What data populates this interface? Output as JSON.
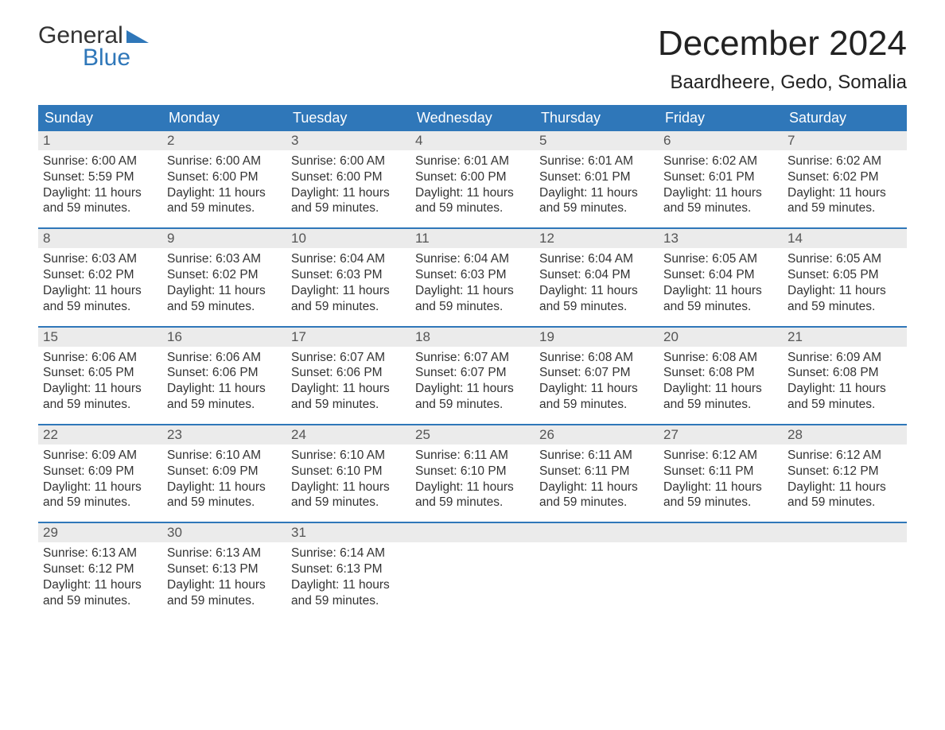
{
  "brand": {
    "line1": "General",
    "line2": "Blue",
    "accent_color": "#2f77b9"
  },
  "title": "December 2024",
  "location": "Baardheere, Gedo, Somalia",
  "colors": {
    "header_bg": "#2f77b9",
    "header_text": "#ffffff",
    "daynum_bg": "#ebebeb",
    "daynum_text": "#555555",
    "body_text": "#333333",
    "page_bg": "#ffffff",
    "week_divider": "#2f77b9"
  },
  "layout": {
    "columns": 7,
    "type": "calendar"
  },
  "weekdays": [
    "Sunday",
    "Monday",
    "Tuesday",
    "Wednesday",
    "Thursday",
    "Friday",
    "Saturday"
  ],
  "weeks": [
    [
      {
        "day": "1",
        "sunrise": "Sunrise: 6:00 AM",
        "sunset": "Sunset: 5:59 PM",
        "daylight1": "Daylight: 11 hours",
        "daylight2": "and 59 minutes."
      },
      {
        "day": "2",
        "sunrise": "Sunrise: 6:00 AM",
        "sunset": "Sunset: 6:00 PM",
        "daylight1": "Daylight: 11 hours",
        "daylight2": "and 59 minutes."
      },
      {
        "day": "3",
        "sunrise": "Sunrise: 6:00 AM",
        "sunset": "Sunset: 6:00 PM",
        "daylight1": "Daylight: 11 hours",
        "daylight2": "and 59 minutes."
      },
      {
        "day": "4",
        "sunrise": "Sunrise: 6:01 AM",
        "sunset": "Sunset: 6:00 PM",
        "daylight1": "Daylight: 11 hours",
        "daylight2": "and 59 minutes."
      },
      {
        "day": "5",
        "sunrise": "Sunrise: 6:01 AM",
        "sunset": "Sunset: 6:01 PM",
        "daylight1": "Daylight: 11 hours",
        "daylight2": "and 59 minutes."
      },
      {
        "day": "6",
        "sunrise": "Sunrise: 6:02 AM",
        "sunset": "Sunset: 6:01 PM",
        "daylight1": "Daylight: 11 hours",
        "daylight2": "and 59 minutes."
      },
      {
        "day": "7",
        "sunrise": "Sunrise: 6:02 AM",
        "sunset": "Sunset: 6:02 PM",
        "daylight1": "Daylight: 11 hours",
        "daylight2": "and 59 minutes."
      }
    ],
    [
      {
        "day": "8",
        "sunrise": "Sunrise: 6:03 AM",
        "sunset": "Sunset: 6:02 PM",
        "daylight1": "Daylight: 11 hours",
        "daylight2": "and 59 minutes."
      },
      {
        "day": "9",
        "sunrise": "Sunrise: 6:03 AM",
        "sunset": "Sunset: 6:02 PM",
        "daylight1": "Daylight: 11 hours",
        "daylight2": "and 59 minutes."
      },
      {
        "day": "10",
        "sunrise": "Sunrise: 6:04 AM",
        "sunset": "Sunset: 6:03 PM",
        "daylight1": "Daylight: 11 hours",
        "daylight2": "and 59 minutes."
      },
      {
        "day": "11",
        "sunrise": "Sunrise: 6:04 AM",
        "sunset": "Sunset: 6:03 PM",
        "daylight1": "Daylight: 11 hours",
        "daylight2": "and 59 minutes."
      },
      {
        "day": "12",
        "sunrise": "Sunrise: 6:04 AM",
        "sunset": "Sunset: 6:04 PM",
        "daylight1": "Daylight: 11 hours",
        "daylight2": "and 59 minutes."
      },
      {
        "day": "13",
        "sunrise": "Sunrise: 6:05 AM",
        "sunset": "Sunset: 6:04 PM",
        "daylight1": "Daylight: 11 hours",
        "daylight2": "and 59 minutes."
      },
      {
        "day": "14",
        "sunrise": "Sunrise: 6:05 AM",
        "sunset": "Sunset: 6:05 PM",
        "daylight1": "Daylight: 11 hours",
        "daylight2": "and 59 minutes."
      }
    ],
    [
      {
        "day": "15",
        "sunrise": "Sunrise: 6:06 AM",
        "sunset": "Sunset: 6:05 PM",
        "daylight1": "Daylight: 11 hours",
        "daylight2": "and 59 minutes."
      },
      {
        "day": "16",
        "sunrise": "Sunrise: 6:06 AM",
        "sunset": "Sunset: 6:06 PM",
        "daylight1": "Daylight: 11 hours",
        "daylight2": "and 59 minutes."
      },
      {
        "day": "17",
        "sunrise": "Sunrise: 6:07 AM",
        "sunset": "Sunset: 6:06 PM",
        "daylight1": "Daylight: 11 hours",
        "daylight2": "and 59 minutes."
      },
      {
        "day": "18",
        "sunrise": "Sunrise: 6:07 AM",
        "sunset": "Sunset: 6:07 PM",
        "daylight1": "Daylight: 11 hours",
        "daylight2": "and 59 minutes."
      },
      {
        "day": "19",
        "sunrise": "Sunrise: 6:08 AM",
        "sunset": "Sunset: 6:07 PM",
        "daylight1": "Daylight: 11 hours",
        "daylight2": "and 59 minutes."
      },
      {
        "day": "20",
        "sunrise": "Sunrise: 6:08 AM",
        "sunset": "Sunset: 6:08 PM",
        "daylight1": "Daylight: 11 hours",
        "daylight2": "and 59 minutes."
      },
      {
        "day": "21",
        "sunrise": "Sunrise: 6:09 AM",
        "sunset": "Sunset: 6:08 PM",
        "daylight1": "Daylight: 11 hours",
        "daylight2": "and 59 minutes."
      }
    ],
    [
      {
        "day": "22",
        "sunrise": "Sunrise: 6:09 AM",
        "sunset": "Sunset: 6:09 PM",
        "daylight1": "Daylight: 11 hours",
        "daylight2": "and 59 minutes."
      },
      {
        "day": "23",
        "sunrise": "Sunrise: 6:10 AM",
        "sunset": "Sunset: 6:09 PM",
        "daylight1": "Daylight: 11 hours",
        "daylight2": "and 59 minutes."
      },
      {
        "day": "24",
        "sunrise": "Sunrise: 6:10 AM",
        "sunset": "Sunset: 6:10 PM",
        "daylight1": "Daylight: 11 hours",
        "daylight2": "and 59 minutes."
      },
      {
        "day": "25",
        "sunrise": "Sunrise: 6:11 AM",
        "sunset": "Sunset: 6:10 PM",
        "daylight1": "Daylight: 11 hours",
        "daylight2": "and 59 minutes."
      },
      {
        "day": "26",
        "sunrise": "Sunrise: 6:11 AM",
        "sunset": "Sunset: 6:11 PM",
        "daylight1": "Daylight: 11 hours",
        "daylight2": "and 59 minutes."
      },
      {
        "day": "27",
        "sunrise": "Sunrise: 6:12 AM",
        "sunset": "Sunset: 6:11 PM",
        "daylight1": "Daylight: 11 hours",
        "daylight2": "and 59 minutes."
      },
      {
        "day": "28",
        "sunrise": "Sunrise: 6:12 AM",
        "sunset": "Sunset: 6:12 PM",
        "daylight1": "Daylight: 11 hours",
        "daylight2": "and 59 minutes."
      }
    ],
    [
      {
        "day": "29",
        "sunrise": "Sunrise: 6:13 AM",
        "sunset": "Sunset: 6:12 PM",
        "daylight1": "Daylight: 11 hours",
        "daylight2": "and 59 minutes."
      },
      {
        "day": "30",
        "sunrise": "Sunrise: 6:13 AM",
        "sunset": "Sunset: 6:13 PM",
        "daylight1": "Daylight: 11 hours",
        "daylight2": "and 59 minutes."
      },
      {
        "day": "31",
        "sunrise": "Sunrise: 6:14 AM",
        "sunset": "Sunset: 6:13 PM",
        "daylight1": "Daylight: 11 hours",
        "daylight2": "and 59 minutes."
      },
      null,
      null,
      null,
      null
    ]
  ]
}
